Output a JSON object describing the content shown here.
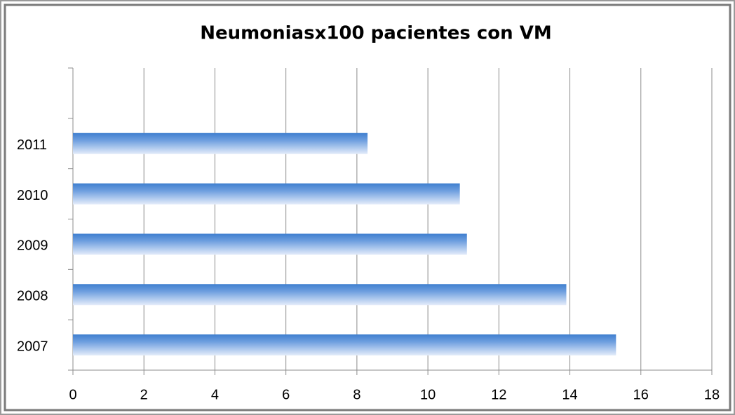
{
  "chart_data": {
    "type": "bar",
    "orientation": "horizontal",
    "title": "Neumoniasx100 pacientes con VM",
    "categories": [
      "2007",
      "2008",
      "2009",
      "2010",
      "2011",
      null
    ],
    "values": [
      15.3,
      13.9,
      11.1,
      10.9,
      8.3,
      null
    ],
    "color": "#4a86d4",
    "xlim": [
      0,
      18
    ],
    "xticks": [
      0,
      2,
      4,
      6,
      8,
      10,
      12,
      14,
      16,
      18
    ],
    "grid": true
  }
}
